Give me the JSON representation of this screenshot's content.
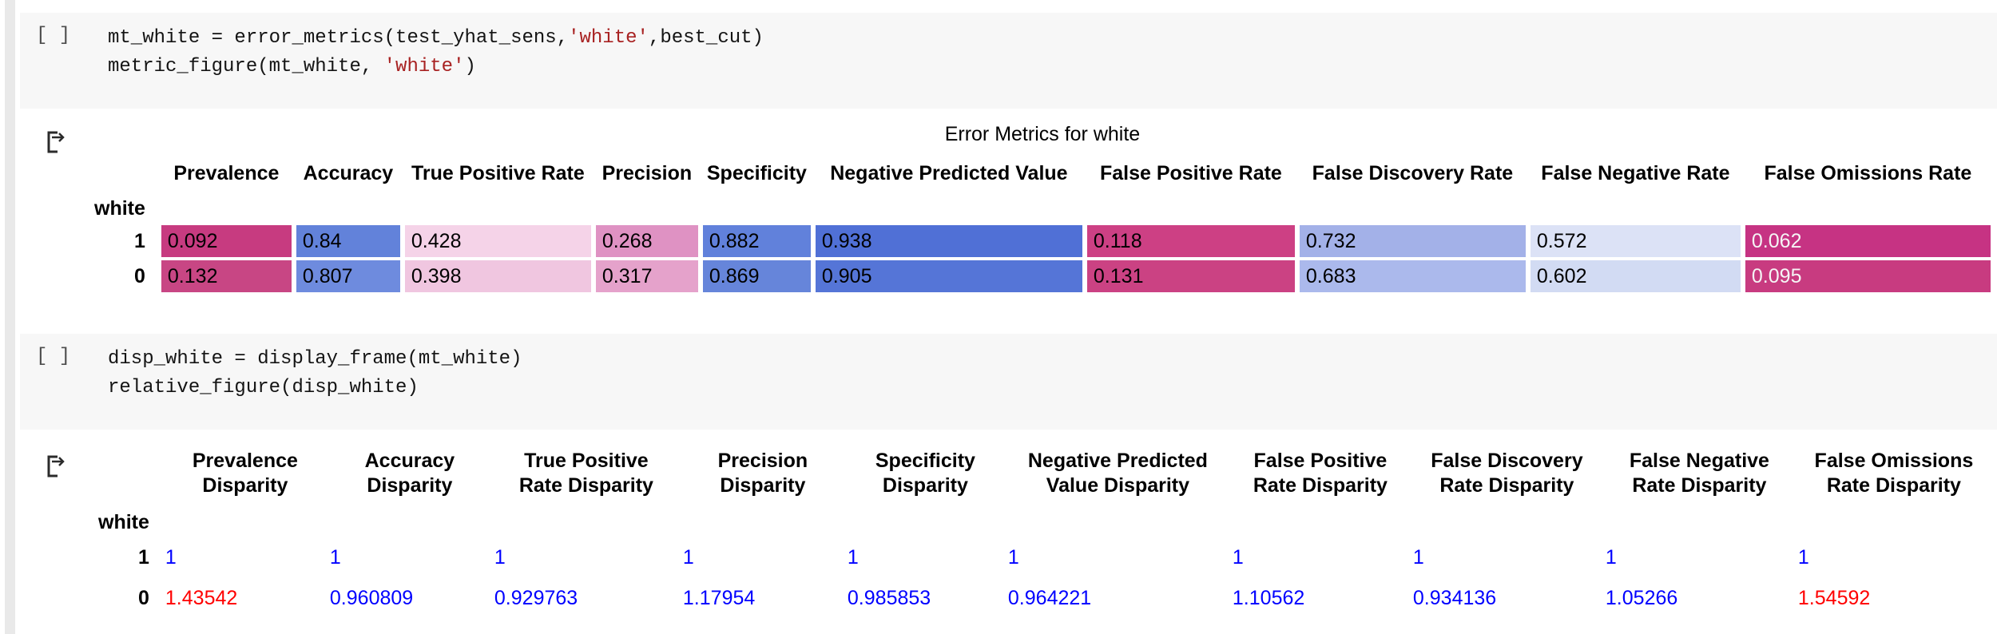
{
  "icons": {
    "output_icon": "cell-output-arrow-icon"
  },
  "cells": [
    {
      "prompt": "[ ]",
      "lines": [
        {
          "segments": [
            {
              "t": "mt_white = error_metrics(test_yhat_sens,",
              "c": "plain"
            },
            {
              "t": "'white'",
              "c": "string"
            },
            {
              "t": ",best_cut)",
              "c": "plain"
            }
          ]
        },
        {
          "segments": [
            {
              "t": "metric_figure(mt_white, ",
              "c": "plain"
            },
            {
              "t": "'white'",
              "c": "string"
            },
            {
              "t": ")",
              "c": "plain"
            }
          ]
        }
      ]
    },
    {
      "prompt": "[ ]",
      "lines": [
        {
          "segments": [
            {
              "t": "disp_white = display_frame(mt_white)",
              "c": "plain"
            }
          ]
        },
        {
          "segments": [
            {
              "t": "relative_figure(disp_white)",
              "c": "plain"
            }
          ]
        }
      ]
    }
  ],
  "output1": {
    "name": "error-metrics-table",
    "title": "Error Metrics for white",
    "index_name": "white",
    "columns": [
      "Prevalence",
      "Accuracy",
      "True Positive Rate",
      "Precision",
      "Specificity",
      "Negative Predicted Value",
      "False Positive Rate",
      "False Discovery Rate",
      "False Negative Rate",
      "False Omissions Rate"
    ],
    "rows": [
      {
        "label": "1",
        "cells": [
          {
            "v": "0.092",
            "bg": "#c73b80",
            "fg": "#000000"
          },
          {
            "v": "0.84",
            "bg": "#6282da",
            "fg": "#000000"
          },
          {
            "v": "0.428",
            "bg": "#f5d3e8",
            "fg": "#000000"
          },
          {
            "v": "0.268",
            "bg": "#df92c3",
            "fg": "#000000"
          },
          {
            "v": "0.882",
            "bg": "#6181db",
            "fg": "#000000"
          },
          {
            "v": "0.938",
            "bg": "#5070d6",
            "fg": "#000000"
          },
          {
            "v": "0.118",
            "bg": "#cd4084",
            "fg": "#000000"
          },
          {
            "v": "0.732",
            "bg": "#a3b1e8",
            "fg": "#000000"
          },
          {
            "v": "0.572",
            "bg": "#dce2f6",
            "fg": "#000000"
          },
          {
            "v": "0.062",
            "bg": "#c63383",
            "fg": "#f5f5f5"
          }
        ]
      },
      {
        "label": "0",
        "cells": [
          {
            "v": "0.132",
            "bg": "#c84684",
            "fg": "#000000"
          },
          {
            "v": "0.807",
            "bg": "#6e8bde",
            "fg": "#000000"
          },
          {
            "v": "0.398",
            "bg": "#f0c6e0",
            "fg": "#000000"
          },
          {
            "v": "0.317",
            "bg": "#e5a2cb",
            "fg": "#000000"
          },
          {
            "v": "0.869",
            "bg": "#6685da",
            "fg": "#000000"
          },
          {
            "v": "0.905",
            "bg": "#5575d7",
            "fg": "#000000"
          },
          {
            "v": "0.131",
            "bg": "#cb4283",
            "fg": "#000000"
          },
          {
            "v": "0.683",
            "bg": "#abb9ec",
            "fg": "#000000"
          },
          {
            "v": "0.602",
            "bg": "#d2dbf3",
            "fg": "#000000"
          },
          {
            "v": "0.095",
            "bg": "#c83b80",
            "fg": "#f5f5f5"
          }
        ]
      }
    ]
  },
  "output2": {
    "name": "disparity-table",
    "index_name": "white",
    "columns": [
      "Prevalence\nDisparity",
      "Accuracy\nDisparity",
      "True Positive\nRate Disparity",
      "Precision\nDisparity",
      "Specificity\nDisparity",
      "Negative Predicted\nValue Disparity",
      "False Positive\nRate Disparity",
      "False Discovery\nRate Disparity",
      "False Negative\nRate Disparity",
      "False Omissions\nRate Disparity"
    ],
    "rows": [
      {
        "label": "1",
        "cells": [
          {
            "v": "1",
            "fg": "#0000ff"
          },
          {
            "v": "1",
            "fg": "#0000ff"
          },
          {
            "v": "1",
            "fg": "#0000ff"
          },
          {
            "v": "1",
            "fg": "#0000ff"
          },
          {
            "v": "1",
            "fg": "#0000ff"
          },
          {
            "v": "1",
            "fg": "#0000ff"
          },
          {
            "v": "1",
            "fg": "#0000ff"
          },
          {
            "v": "1",
            "fg": "#0000ff"
          },
          {
            "v": "1",
            "fg": "#0000ff"
          },
          {
            "v": "1",
            "fg": "#0000ff"
          }
        ]
      },
      {
        "label": "0",
        "cells": [
          {
            "v": "1.43542",
            "fg": "#ff0000"
          },
          {
            "v": "0.960809",
            "fg": "#0000ff"
          },
          {
            "v": "0.929763",
            "fg": "#0000ff"
          },
          {
            "v": "1.17954",
            "fg": "#0000ff"
          },
          {
            "v": "0.985853",
            "fg": "#0000ff"
          },
          {
            "v": "0.964221",
            "fg": "#0000ff"
          },
          {
            "v": "1.10562",
            "fg": "#0000ff"
          },
          {
            "v": "0.934136",
            "fg": "#0000ff"
          },
          {
            "v": "1.05266",
            "fg": "#0000ff"
          },
          {
            "v": "1.54592",
            "fg": "#ff0000"
          }
        ]
      }
    ]
  }
}
